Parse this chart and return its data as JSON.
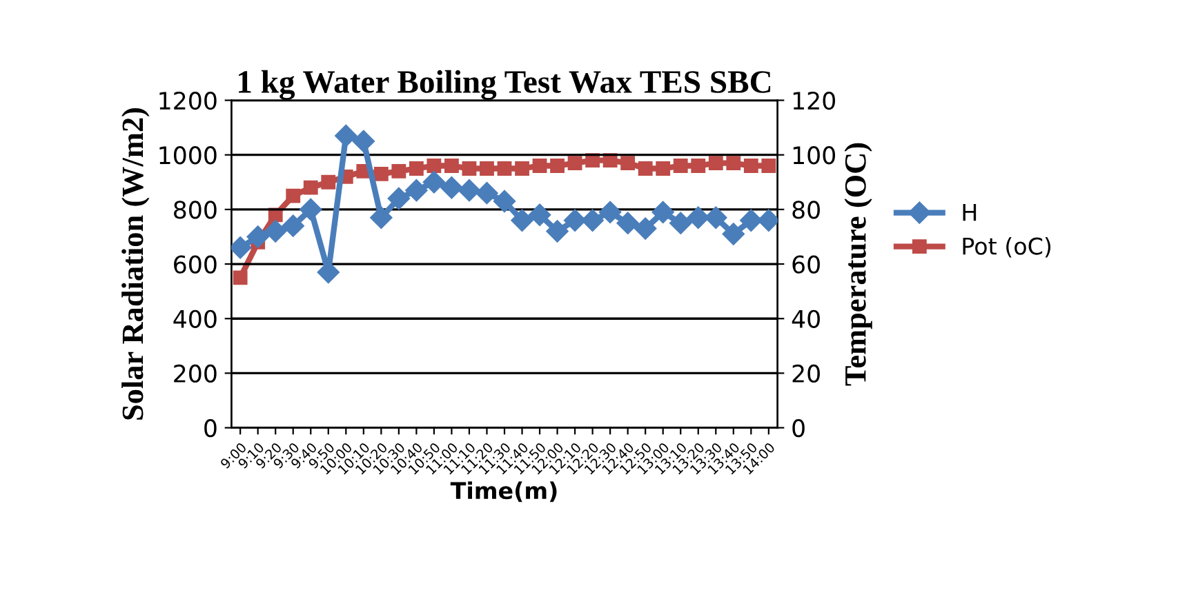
{
  "chart_data": {
    "type": "line",
    "title": "1 kg Water Boiling Test Wax TES SBC",
    "xlabel": "Time(m)",
    "ylabel": "Solar Radiation (W/m2)",
    "y2label": "Temperature (OC)",
    "categories": [
      "9:00",
      "9:10",
      "9:20",
      "9:30",
      "9:40",
      "9:50",
      "10:00",
      "10:10",
      "10:20",
      "10:30",
      "10:40",
      "10:50",
      "11:00",
      "11:10",
      "11:20",
      "11:30",
      "11:40",
      "11:50",
      "12:00",
      "12:10",
      "12:20",
      "12:30",
      "12:40",
      "12:50",
      "13:00",
      "13:10",
      "13:20",
      "13:30",
      "13:40",
      "13:50",
      "14:00"
    ],
    "series": [
      {
        "name": "H",
        "color": "#4a7ebb",
        "marker": "diamond",
        "values": [
          660,
          700,
          720,
          740,
          800,
          570,
          1070,
          1050,
          770,
          840,
          870,
          900,
          880,
          870,
          860,
          830,
          760,
          780,
          720,
          760,
          760,
          790,
          750,
          730,
          790,
          750,
          770,
          770,
          710,
          760,
          760
        ]
      },
      {
        "name": "Pot (oC)",
        "color": "#be4b48",
        "marker": "square",
        "axis": "y2",
        "values": [
          55,
          68,
          78,
          85,
          88,
          90,
          92,
          94,
          93,
          94,
          95,
          96,
          96,
          95,
          95,
          95,
          95,
          96,
          96,
          97,
          98,
          98,
          97,
          95,
          95,
          96,
          96,
          97,
          97,
          96,
          96
        ]
      }
    ],
    "ylim": [
      0,
      1200
    ],
    "yticks": [
      0,
      200,
      400,
      600,
      800,
      1000,
      1200
    ],
    "y2lim": [
      0,
      120
    ],
    "y2ticks": [
      0,
      20,
      40,
      60,
      80,
      100,
      120
    ],
    "grid": "y",
    "legend": "right"
  }
}
